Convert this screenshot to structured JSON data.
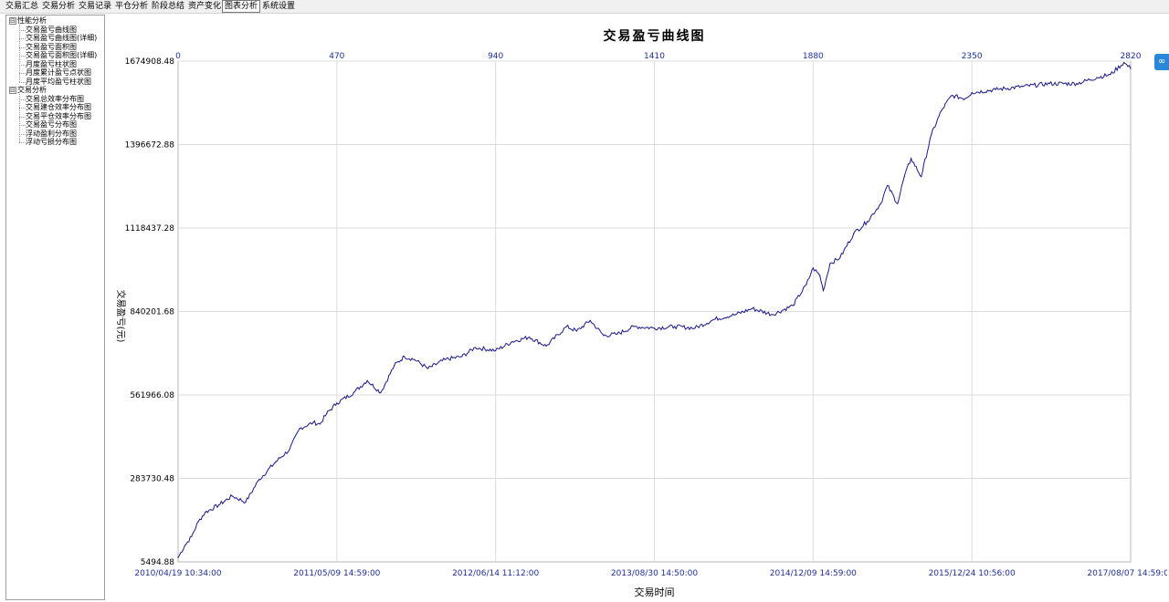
{
  "menu": {
    "tabs": [
      "交易汇总",
      "交易分析",
      "交易记录",
      "平仓分析",
      "阶段总结",
      "资产变化",
      "图表分析",
      "系统设置"
    ],
    "active_tab": "图表分析"
  },
  "tree": {
    "groups": [
      {
        "label": "性能分析",
        "expander": "⊟",
        "items": [
          "交易盈亏曲线图",
          "交易盈亏曲线图(详细)",
          "交易盈亏面积图",
          "交易盈亏面积图(详细)",
          "月度盈亏柱状图",
          "月度累计盈亏点状图",
          "月度平均盈亏柱状图"
        ]
      },
      {
        "label": "交易分析",
        "expander": "⊟",
        "items": [
          "交易总效率分布图",
          "交易建仓效率分布图",
          "交易平仓效率分布图",
          "交易盈亏分布图",
          "浮动盈利分布图",
          "浮动亏损分布图"
        ]
      }
    ]
  },
  "side_button": {
    "icon": "link-icon",
    "glyph": "∞"
  },
  "chart_data": {
    "type": "line",
    "title": "交易盈亏曲线图",
    "xlabel": "交易时间",
    "ylabel": "交易盈亏(元)",
    "x_top_ticks": [
      "0",
      "470",
      "940",
      "1410",
      "1880",
      "2350",
      "2820"
    ],
    "x_top_range": [
      0,
      2820
    ],
    "x_bottom_ticks": [
      "2010/04/19 10:34:00",
      "2011/05/09 14:59:00",
      "2012/06/14 11:12:00",
      "2013/08/30 14:50:00",
      "2014/12/09 14:59:00",
      "2015/12/24 10:56:00",
      "2017/08/07 14:59:00"
    ],
    "y_ticks": [
      "5494.88",
      "283730.48",
      "561966.08",
      "840201.68",
      "1118437.28",
      "1396672.88",
      "1674908.48"
    ],
    "ylim": [
      5494.88,
      1674908.48
    ],
    "grid": true,
    "line_color": "#1a1a8c",
    "series": [
      {
        "x": [
          0,
          20,
          40,
          60,
          80,
          120,
          160,
          200,
          240,
          290,
          330,
          360,
          400,
          420,
          440,
          470,
          520,
          560,
          600,
          640,
          670,
          700,
          740,
          790,
          840,
          880,
          940,
          990,
          1040,
          1090,
          1150,
          1180,
          1220,
          1260,
          1300,
          1350,
          1410,
          1470,
          1530,
          1590,
          1650,
          1700,
          1760,
          1820,
          1860,
          1880,
          1900,
          1910,
          1930,
          1960,
          2000,
          2040,
          2080,
          2100,
          2130,
          2150,
          2170,
          2200,
          2230,
          2260,
          2290,
          2330,
          2350,
          2420,
          2500,
          2580,
          2660,
          2720,
          2760,
          2800,
          2820
        ],
        "y": [
          20000,
          60000,
          90000,
          140000,
          170000,
          195000,
          225000,
          205000,
          280000,
          340000,
          380000,
          450000,
          470000,
          465000,
          500000,
          535000,
          570000,
          610000,
          570000,
          660000,
          690000,
          680000,
          650000,
          680000,
          690000,
          720000,
          710000,
          740000,
          755000,
          725000,
          790000,
          775000,
          810000,
          760000,
          765000,
          790000,
          785000,
          790000,
          785000,
          815000,
          830000,
          850000,
          830000,
          860000,
          930000,
          985000,
          960000,
          910000,
          1000000,
          1020000,
          1100000,
          1140000,
          1200000,
          1260000,
          1200000,
          1290000,
          1350000,
          1290000,
          1430000,
          1510000,
          1560000,
          1550000,
          1570000,
          1580000,
          1590000,
          1600000,
          1600000,
          1620000,
          1630000,
          1670000,
          1650000
        ]
      }
    ]
  }
}
